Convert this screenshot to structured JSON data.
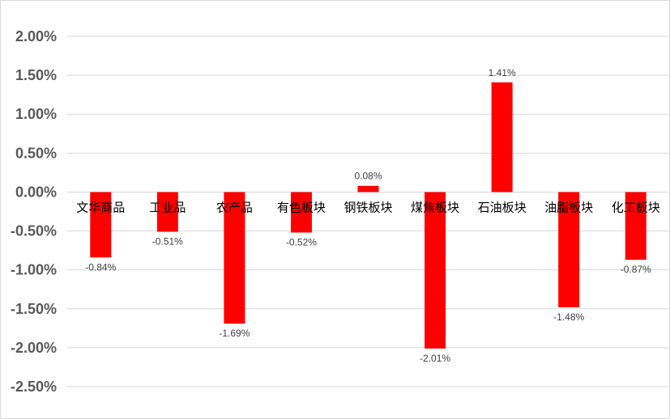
{
  "chart_data": {
    "type": "bar",
    "title": "",
    "xlabel": "",
    "ylabel": "",
    "categories": [
      "文华商品",
      "工业品",
      "农产品",
      "有色板块",
      "钢铁板块",
      "煤焦板块",
      "石油板块",
      "油脂板块",
      "化工板块"
    ],
    "values": [
      -0.84,
      -0.51,
      -1.69,
      -0.52,
      0.08,
      -2.01,
      1.41,
      -1.48,
      -0.87
    ],
    "data_labels": [
      "-0.84%",
      "-0.51%",
      "-1.69%",
      "-0.52%",
      "0.08%",
      "-2.01%",
      "1.41%",
      "-1.48%",
      "-0.87%"
    ],
    "yticks": [
      2.0,
      1.5,
      1.0,
      0.5,
      0.0,
      -0.5,
      -1.0,
      -1.5,
      -2.0,
      -2.5
    ],
    "ytick_labels": [
      "2.00%",
      "1.50%",
      "1.00%",
      "0.50%",
      "0.00%",
      "-0.50%",
      "-1.00%",
      "-1.50%",
      "-2.00%",
      "-2.50%"
    ],
    "ylim": [
      -2.5,
      2.0
    ],
    "grid": true,
    "legend": "none",
    "bar_color": "#ff0000"
  }
}
